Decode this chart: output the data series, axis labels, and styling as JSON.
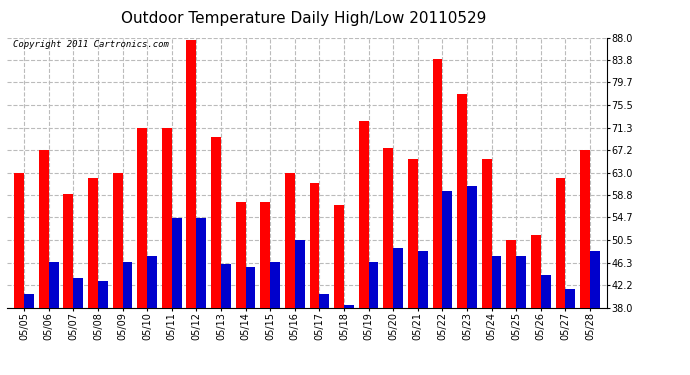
{
  "title": "Outdoor Temperature Daily High/Low 20110529",
  "copyright": "Copyright 2011 Cartronics.com",
  "dates": [
    "05/05",
    "05/06",
    "05/07",
    "05/08",
    "05/09",
    "05/10",
    "05/11",
    "05/12",
    "05/13",
    "05/14",
    "05/15",
    "05/16",
    "05/17",
    "05/18",
    "05/19",
    "05/20",
    "05/21",
    "05/22",
    "05/23",
    "05/24",
    "05/25",
    "05/26",
    "05/27",
    "05/28"
  ],
  "highs": [
    63.0,
    67.2,
    59.0,
    62.0,
    63.0,
    71.3,
    71.3,
    87.5,
    69.5,
    57.5,
    57.5,
    63.0,
    61.0,
    57.0,
    72.5,
    67.5,
    65.5,
    84.0,
    77.5,
    65.5,
    50.5,
    51.5,
    62.0,
    67.2
  ],
  "lows": [
    40.5,
    46.5,
    43.5,
    43.0,
    46.5,
    47.5,
    54.5,
    54.5,
    46.0,
    45.5,
    46.5,
    50.5,
    40.5,
    38.5,
    46.5,
    49.0,
    48.5,
    59.5,
    60.5,
    47.5,
    47.5,
    44.0,
    41.5,
    48.5
  ],
  "high_color": "#ff0000",
  "low_color": "#0000cc",
  "background_color": "#ffffff",
  "plot_bg_color": "#ffffff",
  "grid_color": "#bbbbbb",
  "ylim": [
    38.0,
    88.0
  ],
  "yticks": [
    38.0,
    42.2,
    46.3,
    50.5,
    54.7,
    58.8,
    63.0,
    67.2,
    71.3,
    75.5,
    79.7,
    83.8,
    88.0
  ],
  "bar_width": 0.4,
  "title_fontsize": 11,
  "tick_fontsize": 7,
  "copyright_fontsize": 6.5
}
